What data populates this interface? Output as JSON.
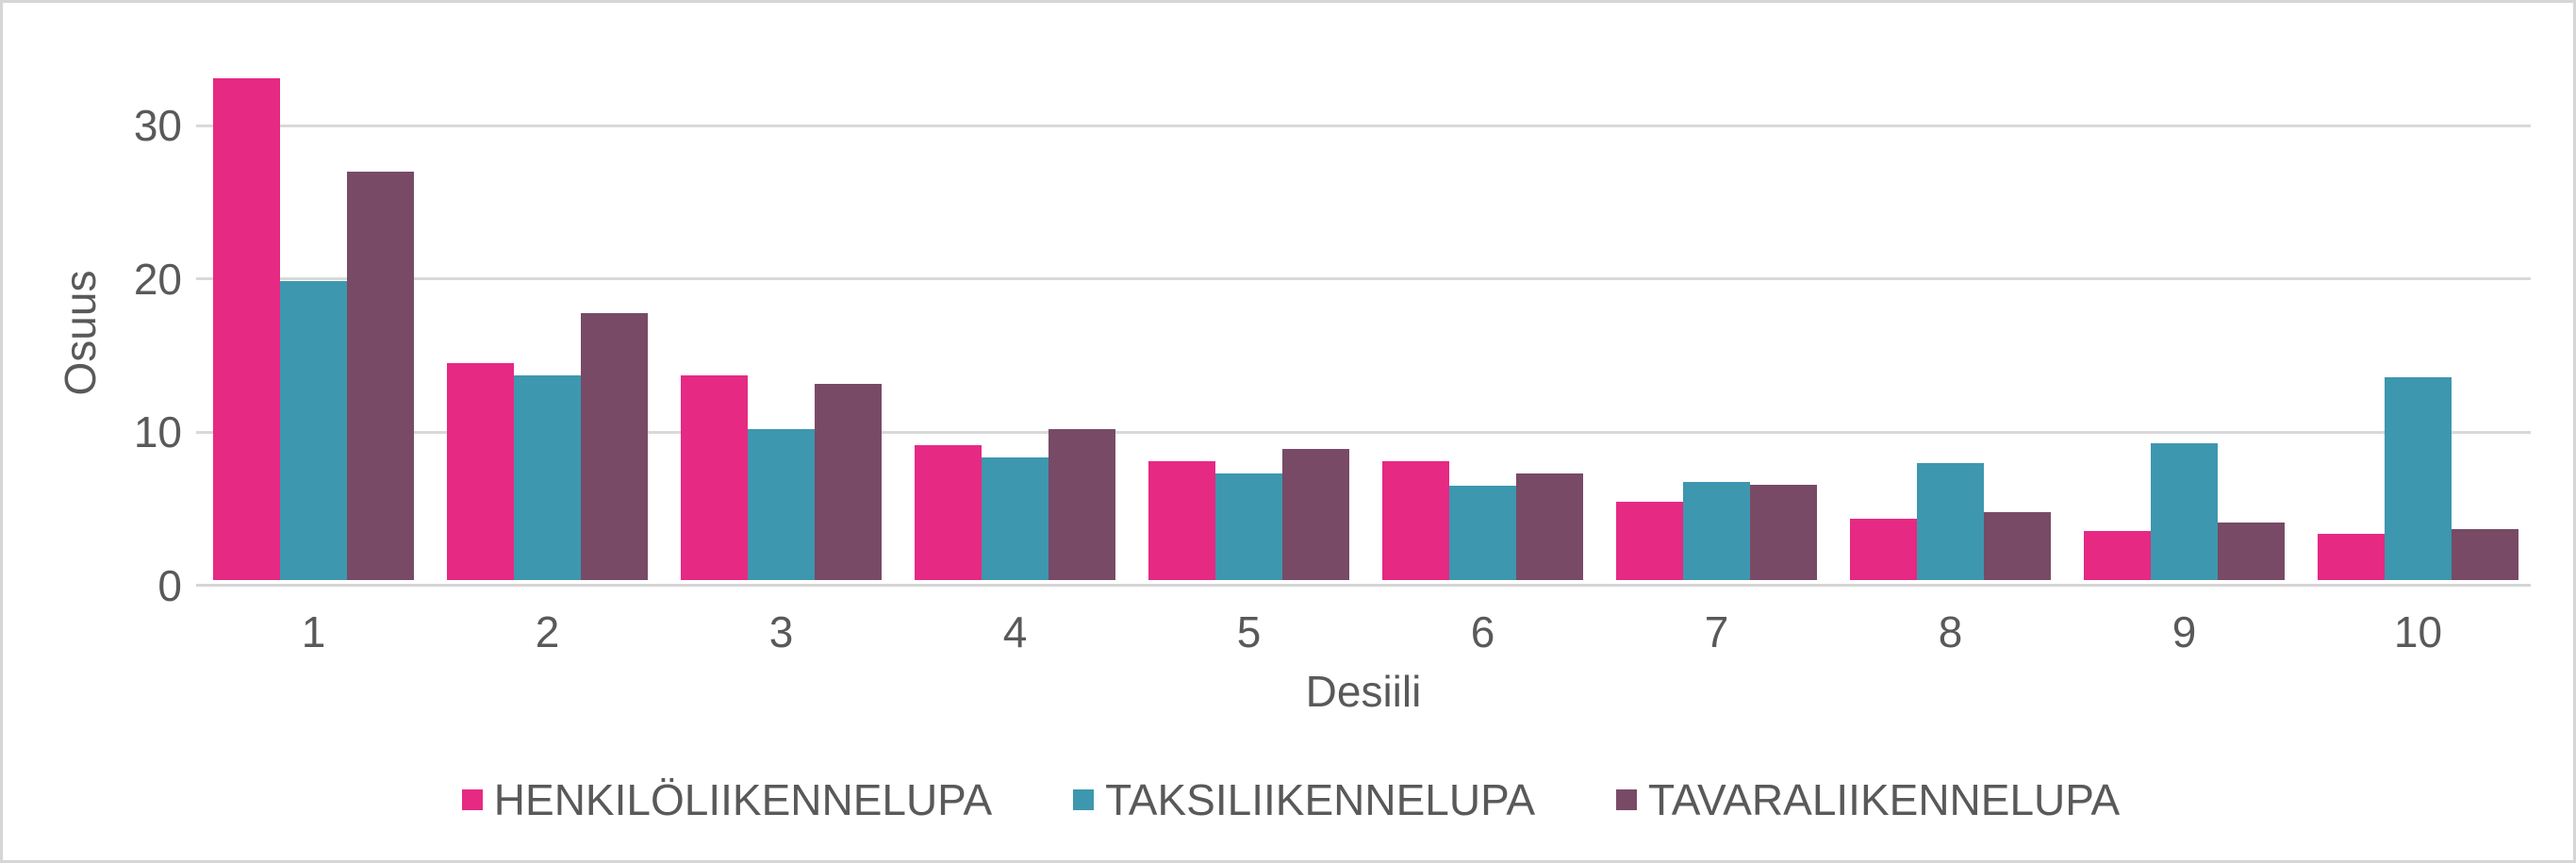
{
  "chart_data": {
    "type": "bar",
    "title": "",
    "xlabel": "Desiili",
    "ylabel": "Osuus",
    "categories": [
      "1",
      "2",
      "3",
      "4",
      "5",
      "6",
      "7",
      "8",
      "9",
      "10"
    ],
    "series": [
      {
        "name": "HENKILÖLIIKENNELUPA",
        "color": "#e62983",
        "values": [
          32.7,
          14.1,
          13.3,
          8.8,
          7.7,
          7.7,
          5.1,
          4.0,
          3.2,
          3.0
        ]
      },
      {
        "name": "TAKSILIIKENNELUPA",
        "color": "#3d97ae",
        "values": [
          19.5,
          13.3,
          9.8,
          8.0,
          6.9,
          6.1,
          6.4,
          7.6,
          8.9,
          13.2
        ]
      },
      {
        "name": "TAVARALIIKENNELUPA",
        "color": "#784a66",
        "values": [
          26.6,
          17.4,
          12.8,
          9.8,
          8.5,
          6.9,
          6.2,
          4.4,
          3.7,
          3.3
        ]
      }
    ],
    "yticks": [
      "0",
      "10",
      "20",
      "30"
    ],
    "ylim": [
      0,
      33.1
    ],
    "grid": "horizontal",
    "legend_position": "bottom",
    "colors": {
      "text": "#595959",
      "gridline": "#d9d9d9",
      "axis_line": "#d5d5d5",
      "background": "#ffffff",
      "frame_border": "#d6d6d6"
    }
  }
}
